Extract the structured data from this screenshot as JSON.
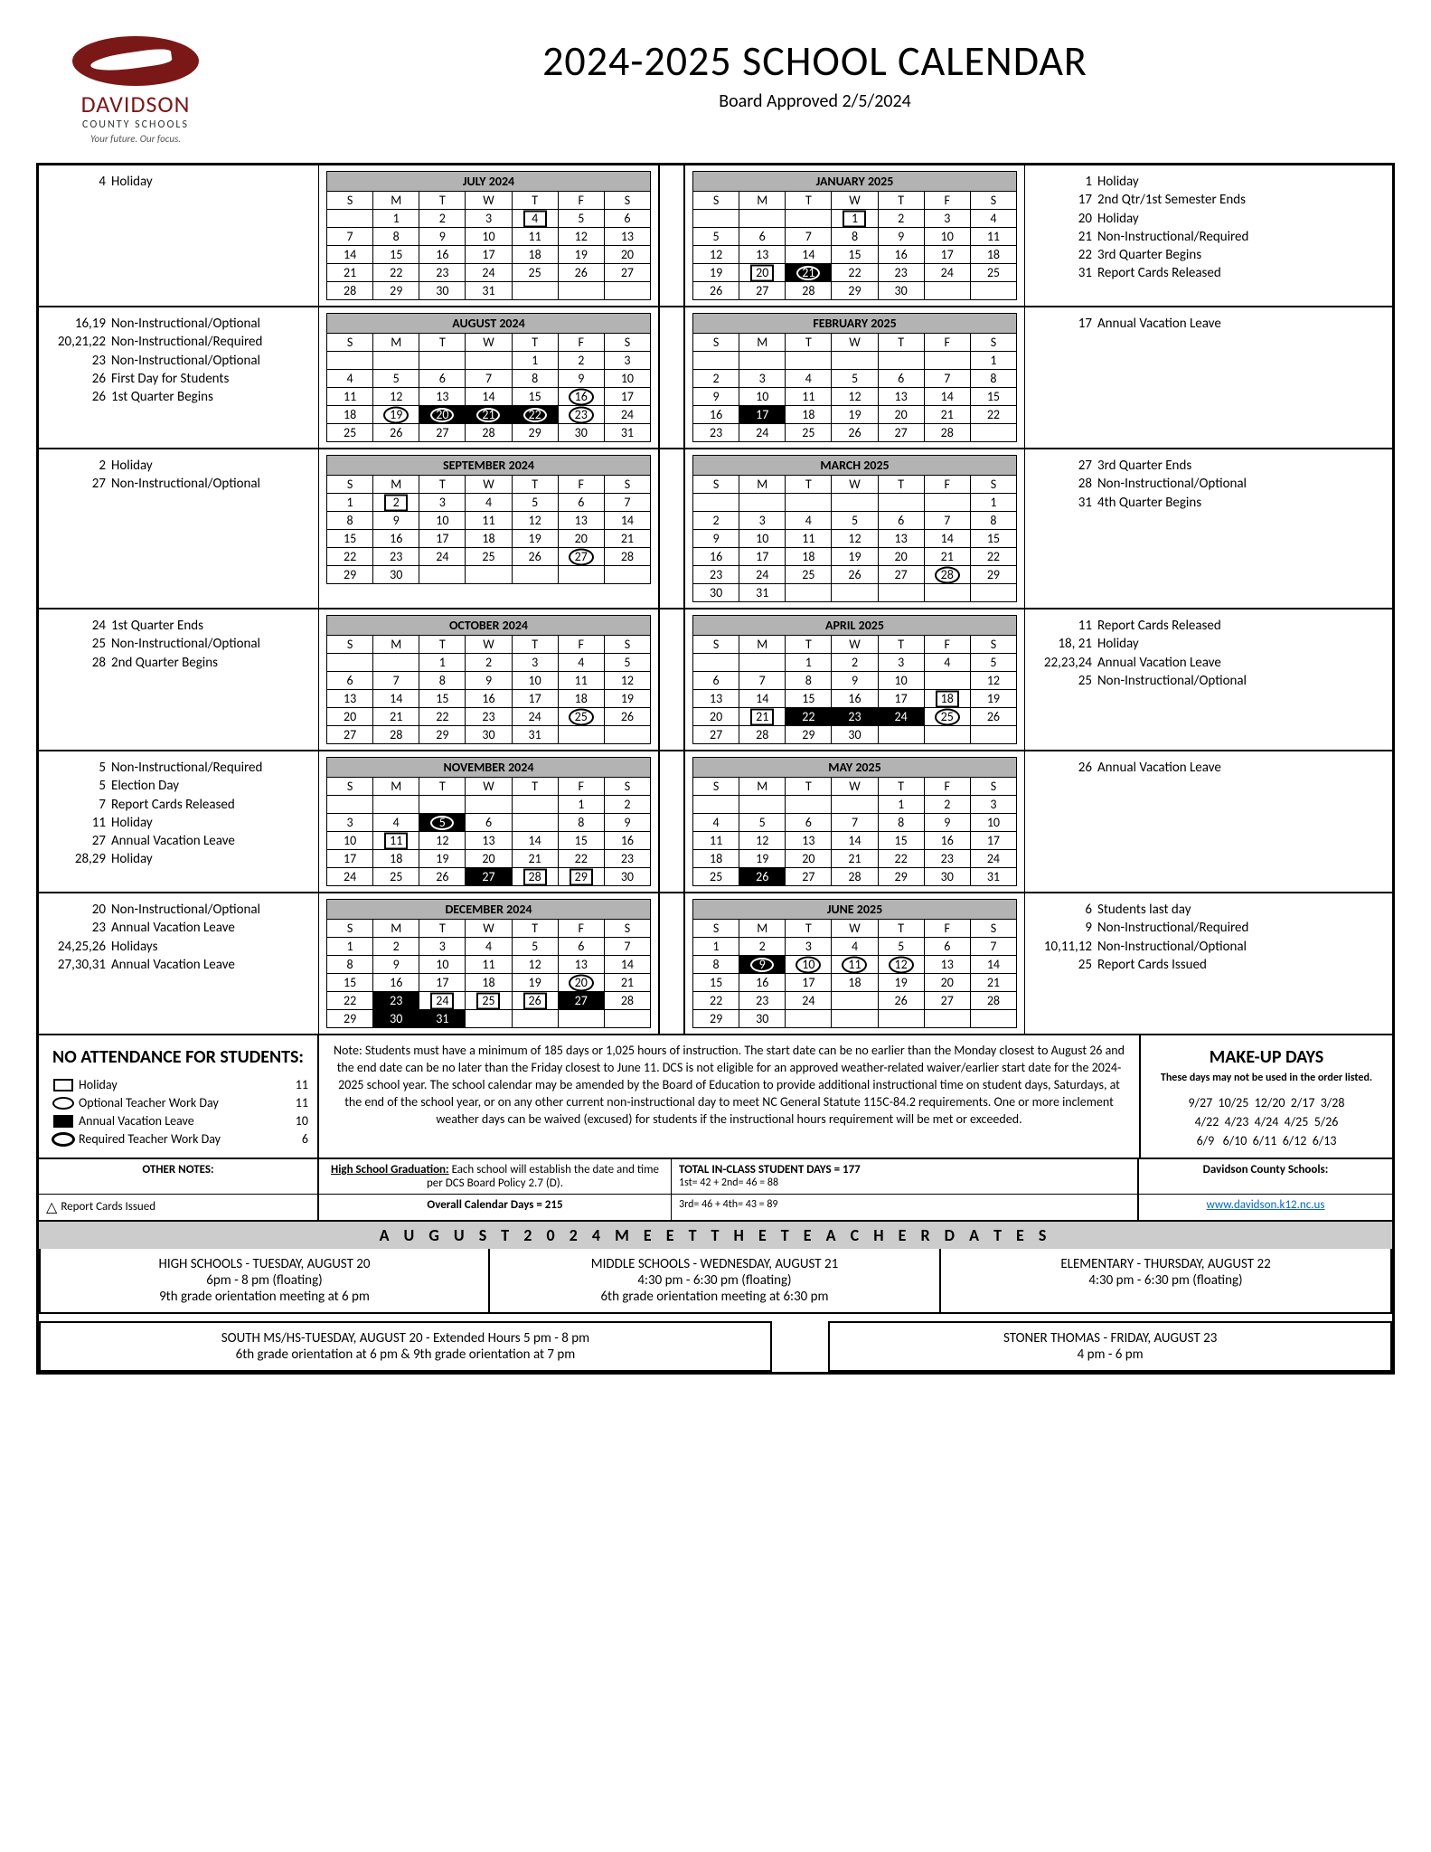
{
  "logo": {
    "name": "DAVIDSON",
    "sub": "COUNTY SCHOOLS",
    "tag": "Your future. Our focus."
  },
  "title": "2024-2025 SCHOOL CALENDAR",
  "subtitle": "Board Approved 2/5/2024",
  "dow": [
    "S",
    "M",
    "T",
    "W",
    "T",
    "F",
    "S"
  ],
  "months": [
    {
      "name": "JULY 2024",
      "start": 1,
      "days": 31,
      "notes_left": [
        [
          "4",
          "Holiday"
        ]
      ],
      "marks": {
        "4": "box"
      }
    },
    {
      "name": "JANUARY 2025",
      "start": 3,
      "days": 31,
      "notes_right": [
        [
          "1",
          "Holiday"
        ],
        [
          "17",
          "2nd Qtr/1st Semester Ends"
        ],
        [
          "20",
          "Holiday"
        ],
        [
          "21",
          "Non-Instructional/Required"
        ],
        [
          "22",
          "3rd Quarter Begins"
        ],
        [
          "31",
          "Report Cards Released"
        ]
      ],
      "marks": {
        "1": "box",
        "20": "box",
        "21": "boldcircle",
        "31": "tri"
      }
    },
    {
      "name": "AUGUST 2024",
      "start": 4,
      "days": 31,
      "notes_left": [
        [
          "16,19",
          "Non-Instructional/Optional"
        ],
        [
          "20,21,22",
          "Non-Instructional/Required"
        ],
        [
          "23",
          "Non-Instructional/Optional"
        ],
        [
          "26",
          "First Day for Students"
        ],
        [
          "26",
          "1st Quarter Begins"
        ]
      ],
      "marks": {
        "16": "circle",
        "19": "circle",
        "20": "boldcircle",
        "21": "boldcircle",
        "22": "boldcircle",
        "23": "circle"
      }
    },
    {
      "name": "FEBRUARY 2025",
      "start": 6,
      "days": 28,
      "notes_right": [
        [
          "17",
          "Annual Vacation Leave"
        ]
      ],
      "marks": {
        "17": "fillbox"
      }
    },
    {
      "name": "SEPTEMBER 2024",
      "start": 0,
      "days": 30,
      "notes_left": [
        [
          "2",
          "Holiday"
        ],
        [
          "27",
          "Non-Instructional/Optional"
        ]
      ],
      "marks": {
        "2": "box",
        "27": "circle"
      }
    },
    {
      "name": "MARCH 2025",
      "start": 6,
      "days": 31,
      "notes_right": [
        [
          "27",
          "3rd Quarter Ends"
        ],
        [
          "28",
          "Non-Instructional/Optional"
        ],
        [
          "31",
          "4th Quarter Begins"
        ]
      ],
      "marks": {
        "28": "circle"
      }
    },
    {
      "name": "OCTOBER 2024",
      "start": 2,
      "days": 31,
      "notes_left": [
        [
          "24",
          "1st Quarter Ends"
        ],
        [
          "25",
          "Non-Instructional/Optional"
        ],
        [
          "28",
          "2nd Quarter Begins"
        ]
      ],
      "marks": {
        "25": "circle"
      }
    },
    {
      "name": "APRIL 2025",
      "start": 2,
      "days": 30,
      "notes_right": [
        [
          "11",
          "Report Cards Released"
        ],
        [
          "18, 21",
          "Holiday"
        ],
        [
          "22,23,24",
          "Annual Vacation Leave"
        ],
        [
          "25",
          "Non-Instructional/Optional"
        ]
      ],
      "marks": {
        "11": "tri",
        "18": "box",
        "21": "box",
        "22": "fillbox",
        "23": "fillbox",
        "24": "fillbox",
        "25": "circle"
      }
    },
    {
      "name": "NOVEMBER 2024",
      "start": 5,
      "days": 30,
      "notes_left": [
        [
          "5",
          "Non-Instructional/Required"
        ],
        [
          "5",
          "Election Day"
        ],
        [
          "7",
          "Report Cards Released"
        ],
        [
          "11",
          "Holiday"
        ],
        [
          "27",
          "Annual Vacation Leave"
        ],
        [
          "28,29",
          "Holiday"
        ]
      ],
      "marks": {
        "5": "boldcircle",
        "7": "tri",
        "11": "box",
        "27": "fillbox",
        "28": "box",
        "29": "box"
      }
    },
    {
      "name": "MAY 2025",
      "start": 4,
      "days": 31,
      "notes_right": [
        [
          "26",
          "Annual Vacation Leave"
        ]
      ],
      "marks": {
        "26": "fillbox"
      }
    },
    {
      "name": "DECEMBER 2024",
      "start": 0,
      "days": 31,
      "notes_left": [
        [
          "20",
          "Non-Instructional/Optional"
        ],
        [
          "23",
          "Annual Vacation Leave"
        ],
        [
          "24,25,26",
          "Holidays"
        ],
        [
          "27,30,31",
          "Annual Vacation Leave"
        ]
      ],
      "marks": {
        "20": "circle",
        "23": "fillbox",
        "24": "box",
        "25": "box",
        "26": "box",
        "27": "fillbox",
        "30": "fillbox",
        "31": "fillbox"
      }
    },
    {
      "name": "JUNE 2025",
      "start": 0,
      "days": 30,
      "notes_right": [
        [
          "6",
          "Students last day"
        ],
        [
          "9",
          "Non-Instructional/Required"
        ],
        [
          "10,11,12",
          "Non-Instructional/Optional"
        ],
        [
          "25",
          "Report Cards Issued"
        ]
      ],
      "marks": {
        "9": "boldcircle",
        "10": "circle",
        "11": "circle",
        "12": "circle",
        "25": "tri"
      }
    }
  ],
  "no_attendance": {
    "title": "NO ATTENDANCE FOR STUDENTS:",
    "items": [
      {
        "sym": "box",
        "label": "Holiday",
        "count": "11"
      },
      {
        "sym": "oval",
        "label": "Optional Teacher Work Day",
        "count": "11"
      },
      {
        "sym": "fillbox",
        "label": "Annual Vacation Leave",
        "count": "10"
      },
      {
        "sym": "boldoval",
        "label": "Required Teacher Work Day",
        "count": "6"
      }
    ]
  },
  "center_note": "Note: Students must have a minimum of 185 days or 1,025 hours of instruction. The start date can be no earlier than the Monday closest to August 26 and the end date can be no later than the Friday closest to June 11. DCS is not eligible for an approved weather-related waiver/earlier start date for the 2024-2025 school year. The school calendar may be amended by the Board of Education to provide additional instructional time on student days, Saturdays, at the end of the school year, or on any other current non-instructional day to meet NC General Statute 115C-84.2 requirements.  One or more inclement weather days can be waived (excused) for students if the instructional hours requirement will be met or exceeded.",
  "makeup": {
    "title": "MAKE-UP DAYS",
    "sub": "These days may not be used in the order listed.",
    "dates": [
      "9/27  10/25  12/20  2/17  3/28",
      "4/22  4/23  4/24  4/25  5/26",
      "6/9   6/10  6/11  6/12  6/13"
    ]
  },
  "other_notes_label": "OTHER NOTES:",
  "hs_grad": "High School Graduation: Each school will establish the date and time per DCS Board Policy 2.7 (D).",
  "total_days_label": "TOTAL IN-CLASS STUDENT DAYS     =     177",
  "quarters1": "1st=     42     +     2nd=    46     =       88",
  "quarters2": "3rd=    46     +     4th=    43     =       89",
  "dcs_label": "Davidson County Schools:",
  "website": "www.davidson.k12.nc.us",
  "report_cards_label": "Report Cards Issued",
  "overall_days": "Overall Calendar Days =  215",
  "meet_header": "AUGUST 2024 MEET THE TEACHER DATES",
  "meet": {
    "hs": {
      "t": "HIGH SCHOOLS - TUESDAY, AUGUST 20",
      "l1": "6pm - 8 pm (floating)",
      "l2": "9th grade orientation meeting at 6 pm"
    },
    "ms": {
      "t": "MIDDLE SCHOOLS - WEDNESDAY, AUGUST 21",
      "l1": "4:30 pm - 6:30 pm (floating)",
      "l2": "6th grade orientation meeting at 6:30 pm"
    },
    "el": {
      "t": "ELEMENTARY - THURSDAY, AUGUST 22",
      "l1": "4:30 pm - 6:30 pm (floating)",
      "l2": ""
    },
    "south": {
      "t": "SOUTH MS/HS-TUESDAY, AUGUST 20 - Extended Hours 5 pm - 8 pm",
      "l1": "6th grade orientation at 6 pm & 9th grade orientation at 7 pm"
    },
    "stoner": {
      "t": "STONER THOMAS - FRIDAY, AUGUST 23",
      "l1": "4 pm - 6 pm"
    }
  }
}
